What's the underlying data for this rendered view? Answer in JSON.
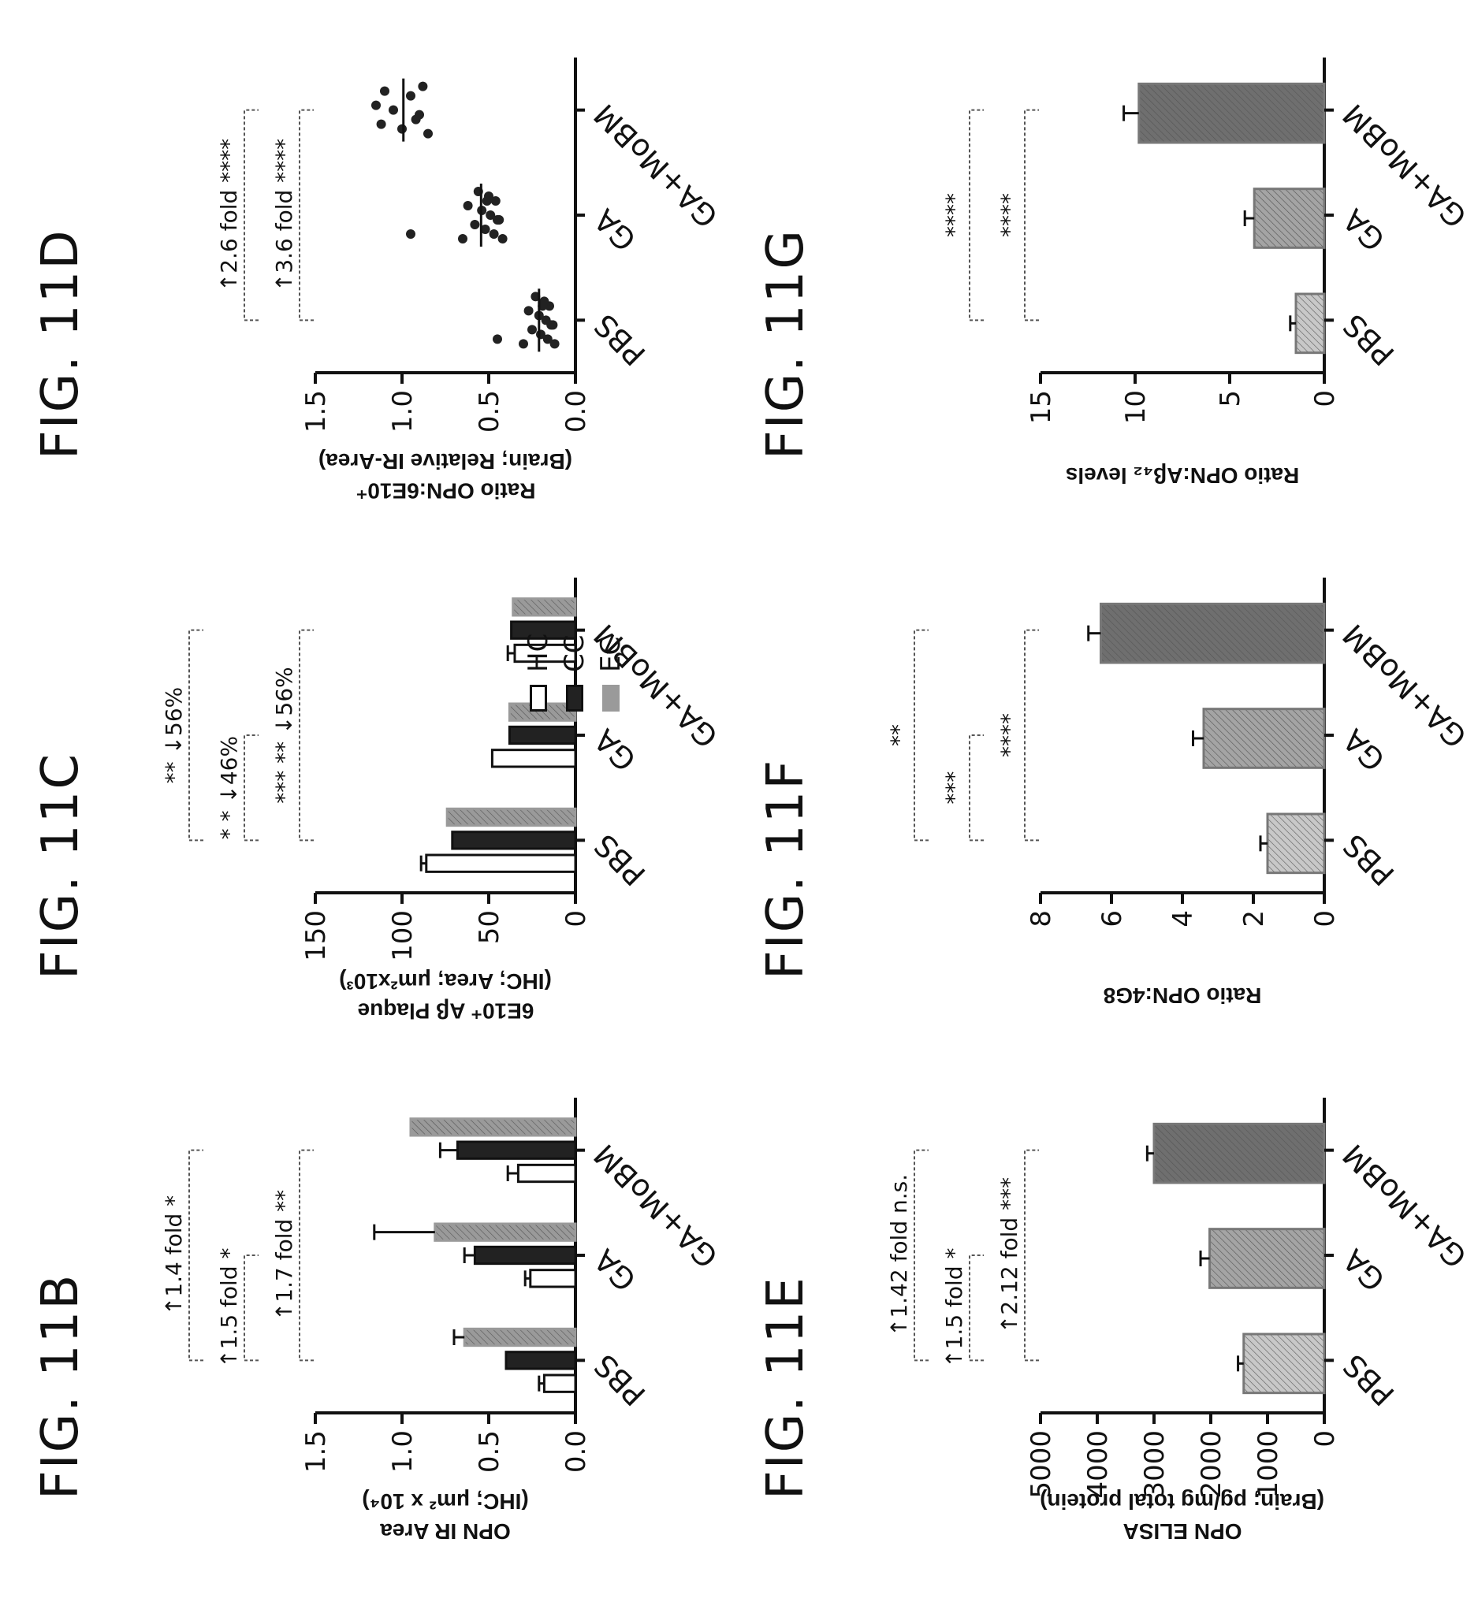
{
  "colors": {
    "HC": "#ffffff",
    "CC": "#222222",
    "EC": "#9a9a9a",
    "PBS": "#c8c8c8",
    "GA": "#a4a4a4",
    "GA_Mo": "#6f6f6f"
  },
  "legend": [
    {
      "key": "HC",
      "label": "HC"
    },
    {
      "key": "CC",
      "label": "CC"
    },
    {
      "key": "EC",
      "label": "EC"
    }
  ],
  "chart_data": [
    {
      "id": "b",
      "type": "bar",
      "title": "FIG. 11B",
      "ylabel": [
        "OPN IR Area",
        "(IHC; μm² x 10⁴)"
      ],
      "categories": [
        "PBS",
        "GA",
        "GA+MoBM"
      ],
      "ylim": [
        0,
        1.5
      ],
      "yticks": [
        "0.0",
        "0.5",
        "1.0",
        "1.5"
      ],
      "series": [
        {
          "name": "HC",
          "values": [
            0.18,
            0.26,
            0.33
          ],
          "errors": [
            0.03,
            0.03,
            0.06
          ]
        },
        {
          "name": "CC",
          "values": [
            0.4,
            0.58,
            0.68
          ],
          "errors": [
            0.0,
            0.06,
            0.1
          ]
        },
        {
          "name": "EC",
          "values": [
            0.64,
            0.81,
            0.95
          ],
          "errors": [
            0.06,
            0.35,
            0.0
          ]
        }
      ],
      "annotations": [
        {
          "text": "↑1.7 fold",
          "sig": "**"
        },
        {
          "text": "↑1.5 fold",
          "sig": "*"
        },
        {
          "text": "↑1.4 fold",
          "sig": "*"
        }
      ]
    },
    {
      "id": "c",
      "type": "bar",
      "title": "FIG. 11C",
      "ylabel": [
        "6E10⁺ Aβ Plaque",
        "(IHC; Area; μm²x10³)"
      ],
      "categories": [
        "PBS",
        "GA",
        "GA+MoBM"
      ],
      "ylim": [
        0,
        150
      ],
      "yticks": [
        "0",
        "50",
        "100",
        "150"
      ],
      "series": [
        {
          "name": "HC",
          "values": [
            86,
            48,
            35
          ],
          "errors": [
            3,
            0,
            4
          ]
        },
        {
          "name": "CC",
          "values": [
            71,
            38,
            37
          ],
          "errors": [
            0,
            0,
            0
          ]
        },
        {
          "name": "EC",
          "values": [
            74,
            38,
            36
          ],
          "errors": [
            0,
            0,
            0
          ]
        }
      ],
      "annotations": [
        {
          "text": "***",
          "sig": "**",
          "pct": "↓56%"
        },
        {
          "text": "*",
          "sig": "*",
          "pct": "↓46%"
        },
        {
          "text": "**",
          "sig": "",
          "pct": "↓56%"
        }
      ]
    },
    {
      "id": "d",
      "type": "scatter",
      "title": "FIG. 11D",
      "ylabel": [
        "Ratio OPN:6E10⁺",
        "(Brain; Relative IR-Area)"
      ],
      "categories": [
        "PBS",
        "GA",
        "GA+MoBM"
      ],
      "ylim": [
        0,
        1.5
      ],
      "yticks": [
        "0.0",
        "0.5",
        "1.0",
        "1.5"
      ],
      "points": [
        [
          0.12,
          0.14,
          0.15,
          0.16,
          0.17,
          0.18,
          0.2,
          0.21,
          0.23,
          0.25,
          0.27,
          0.3,
          0.13,
          0.19,
          0.45
        ],
        [
          0.42,
          0.44,
          0.46,
          0.47,
          0.49,
          0.5,
          0.52,
          0.54,
          0.56,
          0.58,
          0.62,
          0.65,
          0.45,
          0.51,
          0.95
        ],
        [
          0.85,
          0.9,
          0.95,
          1.0,
          1.05,
          1.1,
          1.12,
          1.15,
          0.88,
          0.92
        ]
      ],
      "annotations": [
        {
          "text": "↑3.6 fold",
          "sig": "****"
        },
        {
          "text": "↑2.6 fold",
          "sig": "****"
        }
      ]
    },
    {
      "id": "e",
      "type": "bar",
      "title": "FIG. 11E",
      "ylabel": [
        "OPN ELISA",
        "(Brain; pg/mg total protein)"
      ],
      "categories": [
        "PBS",
        "GA",
        "GA+MoBM"
      ],
      "ylim": [
        0,
        5000
      ],
      "yticks": [
        "0",
        "1000",
        "2000",
        "3000",
        "4000",
        "5000"
      ],
      "series": [
        {
          "name": "",
          "values": [
            1420,
            2020,
            3000
          ],
          "errors": [
            100,
            160,
            120
          ]
        }
      ],
      "annotations": [
        {
          "text": "↑2.12 fold",
          "sig": "***"
        },
        {
          "text": "↑1.5 fold",
          "sig": "*"
        },
        {
          "text": "↑1.42 fold",
          "sig": "n.s."
        }
      ]
    },
    {
      "id": "f",
      "type": "bar",
      "title": "FIG. 11F",
      "ylabel": [
        "Ratio OPN:4G8"
      ],
      "categories": [
        "PBS",
        "GA",
        "GA+MoBM"
      ],
      "ylim": [
        0,
        8
      ],
      "yticks": [
        "0",
        "2",
        "4",
        "6",
        "8"
      ],
      "series": [
        {
          "name": "",
          "values": [
            1.6,
            3.4,
            6.3
          ],
          "errors": [
            0.2,
            0.3,
            0.35
          ]
        }
      ],
      "annotations": [
        {
          "text": "****",
          "sig": ""
        },
        {
          "text": "***",
          "sig": ""
        },
        {
          "text": "**",
          "sig": ""
        }
      ]
    },
    {
      "id": "g",
      "type": "bar",
      "title": "FIG. 11G",
      "ylabel": [
        "Ratio OPN:Aβ₄₂ levels"
      ],
      "categories": [
        "PBS",
        "GA",
        "GA+MoBM"
      ],
      "ylim": [
        0,
        15
      ],
      "yticks": [
        "0",
        "5",
        "10",
        "15"
      ],
      "series": [
        {
          "name": "",
          "values": [
            1.5,
            3.7,
            9.8
          ],
          "errors": [
            0.3,
            0.5,
            0.8
          ]
        }
      ],
      "annotations": [
        {
          "text": "****",
          "sig": ""
        },
        {
          "text": "****",
          "sig": ""
        }
      ]
    }
  ]
}
